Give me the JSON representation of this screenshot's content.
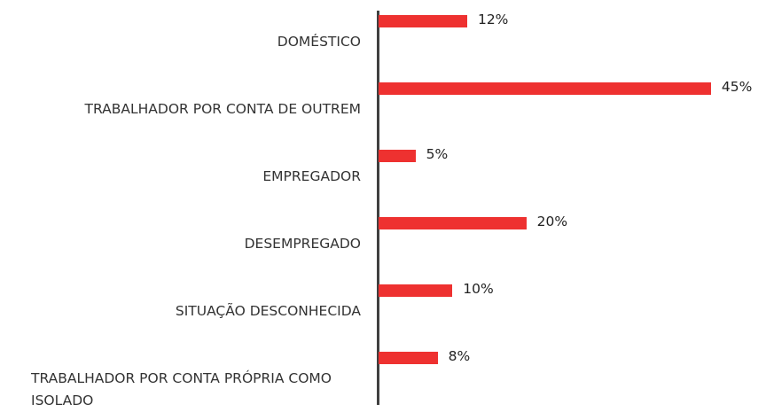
{
  "chart_data": {
    "type": "bar",
    "orientation": "horizontal",
    "categories": [
      "DOMÉSTICO",
      "TRABALHADOR POR CONTA DE OUTREM",
      "EMPREGADOR",
      "DESEMPREGADO",
      "SITUAÇÃO DESCONHECIDA",
      "TRABALHADOR POR CONTA PRÓPRIA COMO ISOLADO"
    ],
    "values": [
      12,
      45,
      5,
      20,
      10,
      8
    ],
    "value_labels": [
      "12%",
      "45%",
      "5%",
      "20%",
      "10%",
      "8%"
    ],
    "color": "#ee3130"
  }
}
